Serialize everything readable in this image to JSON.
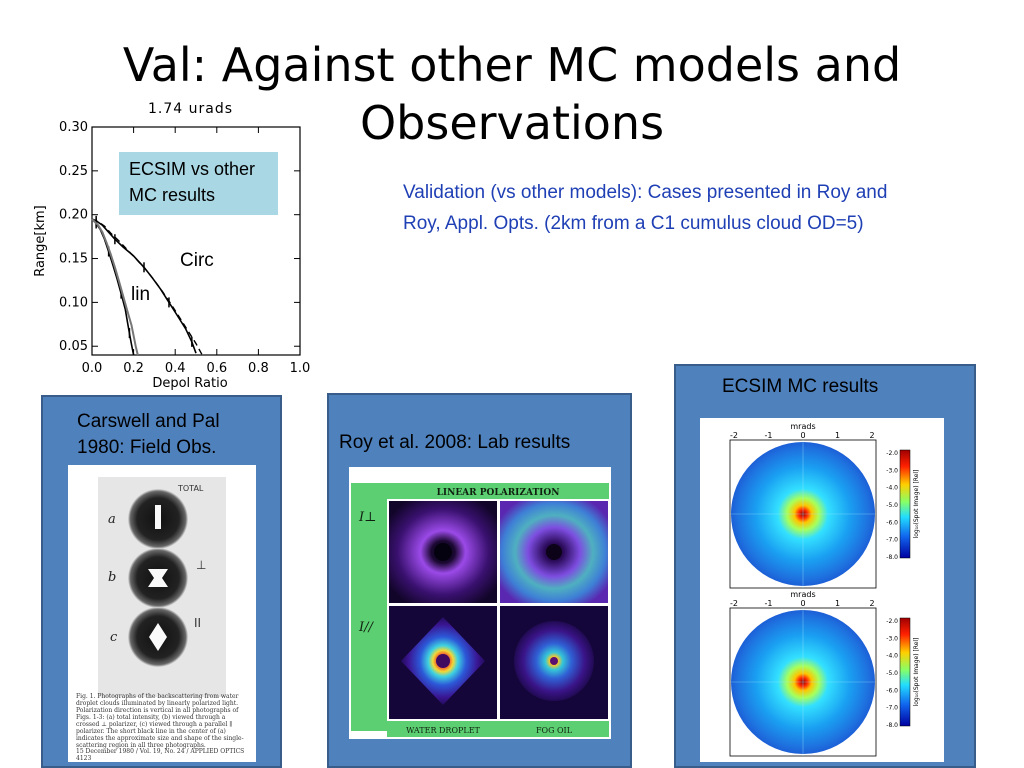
{
  "slide": {
    "title_line1": "Val: Against other MC models and",
    "title_line2": "Observations",
    "validation_text": "Validation (vs other models):  Cases presented in Roy and Roy, Appl. Opts. (2km from a C1 cumulus cloud OD=5)",
    "accent_text_color": "#1f3fb5",
    "panel_color": "#4f81bd"
  },
  "chart_data": {
    "type": "line",
    "title": "1.74  urads",
    "xlabel": "Depol  Ratio",
    "ylabel": "Range[km]",
    "xlim": [
      0.0,
      1.0
    ],
    "ylim": [
      0.04,
      0.3
    ],
    "x_ticks": [
      "0.0",
      "0.2",
      "0.4",
      "0.6",
      "0.8",
      "1.0"
    ],
    "y_ticks": [
      "0.05",
      "0.10",
      "0.15",
      "0.20",
      "0.25",
      "0.30"
    ],
    "annotation_box": "ECSIM vs other MC results",
    "series": [
      {
        "name": "Circ",
        "style": "solid",
        "x": [
          0.0,
          0.02,
          0.05,
          0.08,
          0.11,
          0.15,
          0.2,
          0.25,
          0.29,
          0.33,
          0.37,
          0.41,
          0.45,
          0.48,
          0.5
        ],
        "y": [
          0.195,
          0.193,
          0.188,
          0.18,
          0.172,
          0.163,
          0.153,
          0.14,
          0.128,
          0.115,
          0.1,
          0.085,
          0.07,
          0.055,
          0.042
        ]
      },
      {
        "name": "",
        "style": "dashed",
        "x": [
          0.0,
          0.03,
          0.06,
          0.09,
          0.13,
          0.17,
          0.21,
          0.26,
          0.3,
          0.34,
          0.38,
          0.42,
          0.46,
          0.5,
          0.53
        ],
        "y": [
          0.195,
          0.192,
          0.187,
          0.179,
          0.17,
          0.16,
          0.15,
          0.137,
          0.125,
          0.112,
          0.098,
          0.083,
          0.068,
          0.053,
          0.04
        ]
      },
      {
        "name": "lin",
        "style": "solid",
        "x": [
          0.0,
          0.02,
          0.04,
          0.06,
          0.08,
          0.1,
          0.12,
          0.14,
          0.16,
          0.17,
          0.18,
          0.19,
          0.2
        ],
        "y": [
          0.195,
          0.19,
          0.183,
          0.172,
          0.158,
          0.143,
          0.127,
          0.11,
          0.092,
          0.078,
          0.065,
          0.052,
          0.04
        ]
      },
      {
        "name": "",
        "style": "solid-gray",
        "x": [
          0.0,
          0.03,
          0.05,
          0.07,
          0.09,
          0.11,
          0.13,
          0.15,
          0.17,
          0.19,
          0.2,
          0.21,
          0.22
        ],
        "y": [
          0.195,
          0.188,
          0.18,
          0.168,
          0.155,
          0.14,
          0.124,
          0.107,
          0.09,
          0.074,
          0.062,
          0.05,
          0.04
        ]
      }
    ],
    "labels": {
      "circ": "Circ",
      "lin": "lin"
    }
  },
  "panels": {
    "carswell": {
      "title": "Carswell and Pal 1980: Field Obs.",
      "fig_labels": [
        "a",
        "b",
        "c"
      ],
      "fig_marks": [
        "TOTAL",
        "⊥",
        "II"
      ],
      "caption": "Fig. 1.   Photographs of the backscattering from water droplet clouds illuminated by linearly polarized light.  Polarization direction is vertical in all photographs of Figs. 1-3:  (a) total intensity, (b) viewed through a crossed ⊥ polarizer, (c) viewed through a parallel ∥ polarizer.  The short black line in the center of (a) indicates the approximate size and shape of the single-scattering region in all three photographs.",
      "footer": "15 December 1980 / Vol. 19, No. 24 / APPLIED OPTICS     4123"
    },
    "roy": {
      "title": "Roy et al. 2008: Lab results",
      "header": "LINEAR POLARIZATION",
      "row_labels": [
        "I⊥",
        "I//"
      ],
      "col_labels": [
        "WATER DROPLET",
        "FOG OIL"
      ]
    },
    "ecsim": {
      "title": "ECSIM MC results",
      "axis_label": "mrads",
      "x_ticks": [
        "-2",
        "-1",
        "0",
        "1",
        "2"
      ],
      "colorbar_ticks": [
        "-2.0",
        "-3.0",
        "-4.0",
        "-5.0",
        "-6.0",
        "-7.0",
        "-8.0"
      ],
      "colorbar_label": "log₁₀(Spot Image) [Rel]"
    }
  }
}
